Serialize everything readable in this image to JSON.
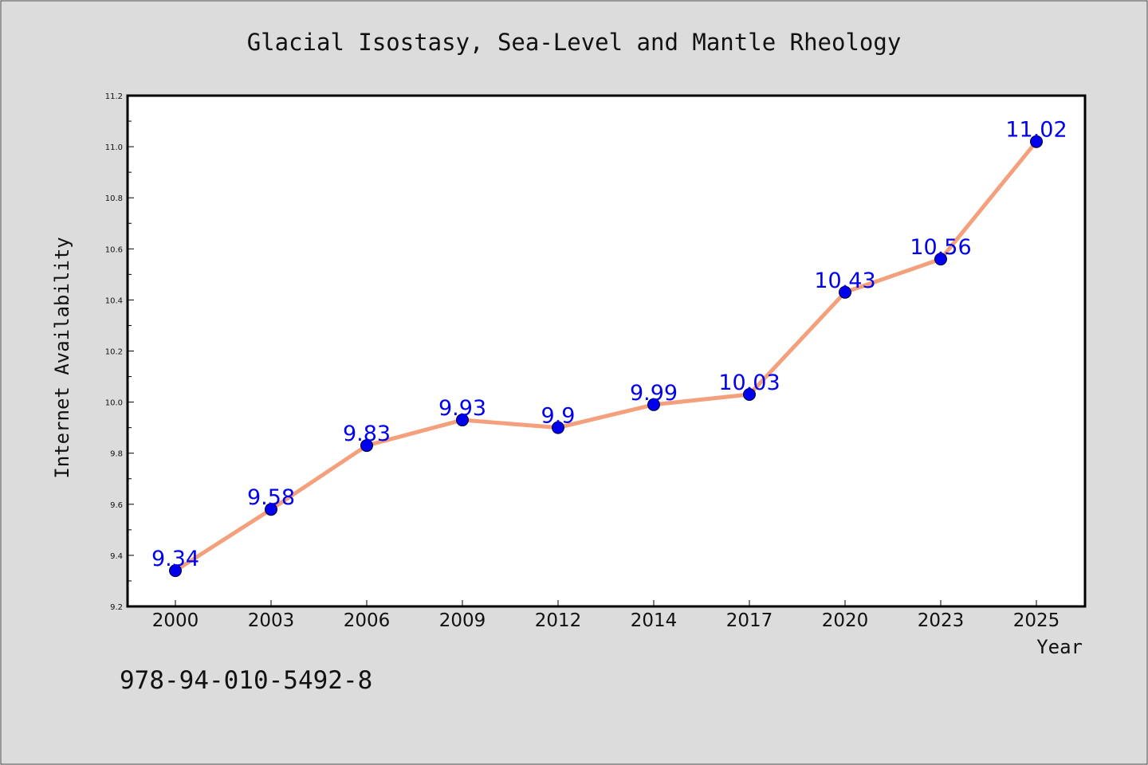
{
  "chart_data": {
    "type": "line",
    "title": "Glacial Isostasy, Sea-Level and Mantle Rheology",
    "xlabel": "Year",
    "ylabel": "Internet Availability",
    "categories": [
      "2000",
      "2003",
      "2006",
      "2009",
      "2012",
      "2014",
      "2017",
      "2020",
      "2023",
      "2025"
    ],
    "values": [
      9.34,
      9.58,
      9.83,
      9.93,
      9.9,
      9.99,
      10.03,
      10.43,
      10.56,
      11.02
    ],
    "data_labels": [
      "9.34",
      "9.58",
      "9.83",
      "9.93",
      "9.9",
      "9.99",
      "10.03",
      "10.43",
      "10.56",
      "11.02"
    ],
    "ylim": [
      9.2,
      11.2
    ],
    "yticks": [
      "9.2",
      "9.4",
      "9.6",
      "9.8",
      "10.0",
      "10.2",
      "10.4",
      "10.6",
      "10.8",
      "11.0",
      "11.2"
    ],
    "grid": false,
    "legend": "none",
    "line_color": "#f4a07c",
    "marker_color": "#0000ee",
    "label_color": "#0000ee",
    "background": "#dcdcdc",
    "plot_background": "#ffffff"
  },
  "footer": {
    "isbn": "978-94-010-5492-8"
  }
}
